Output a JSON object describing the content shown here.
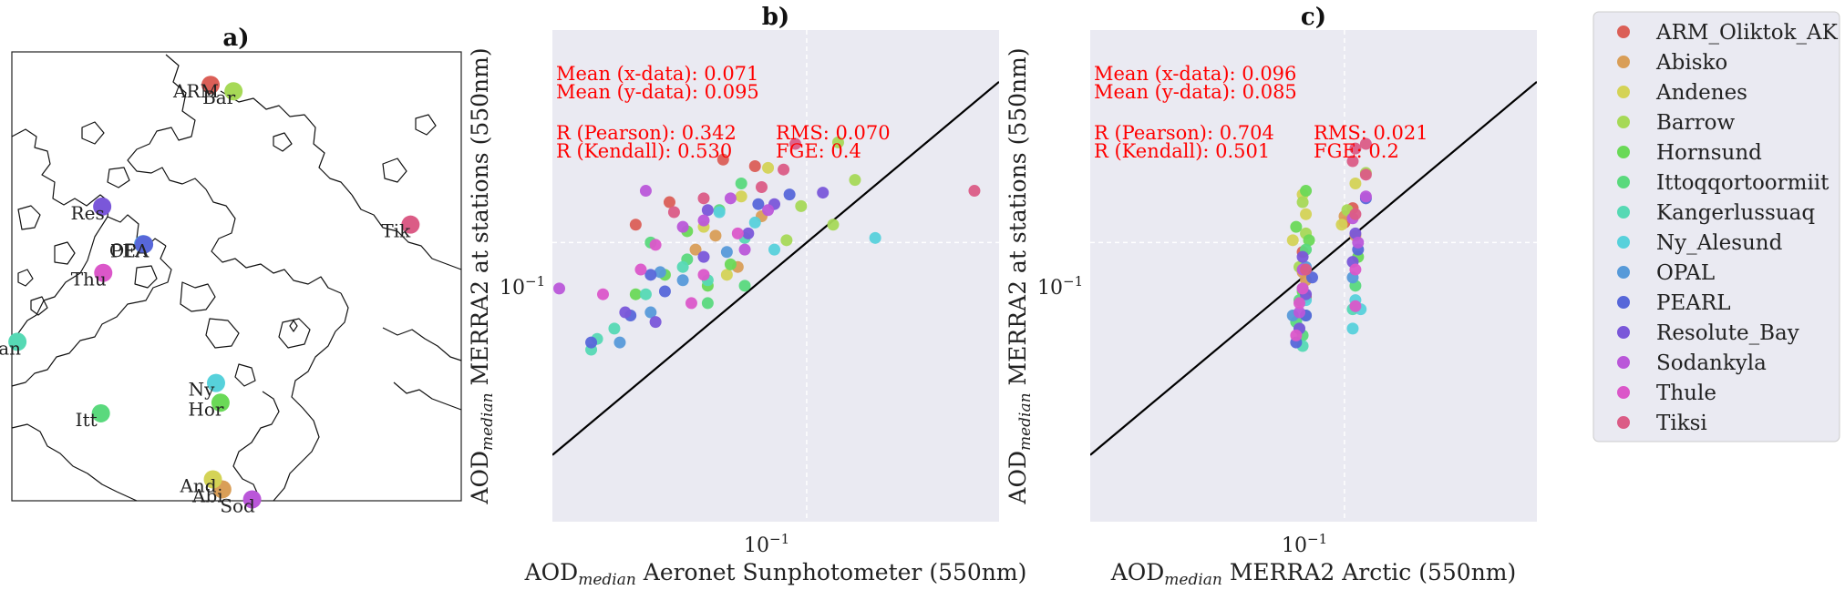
{
  "palette": [
    "#db5f57",
    "#d99e57",
    "#d4d356",
    "#a6d957",
    "#6ad957",
    "#5ad97d",
    "#56d9b4",
    "#57d1db",
    "#579ad9",
    "#5767d9",
    "#7a57d9",
    "#ba57d9",
    "#db57c9",
    "#db5c86"
  ],
  "stations": [
    {
      "name": "ARM_Oliktok_AK",
      "abbr": "ARM",
      "lon": -149.9,
      "lat": 70.5
    },
    {
      "name": "Abisko",
      "abbr": "Abi",
      "lon": 18.8,
      "lat": 68.4
    },
    {
      "name": "Andenes",
      "abbr": "And",
      "lon": 16.0,
      "lat": 69.3
    },
    {
      "name": "Barrow",
      "abbr": "Bar",
      "lon": -156.7,
      "lat": 71.3
    },
    {
      "name": "Hornsund",
      "abbr": "Hor",
      "lon": 15.5,
      "lat": 77.0
    },
    {
      "name": "Ittoqqortoormiit",
      "abbr": "Itt",
      "lon": -22.0,
      "lat": 70.5
    },
    {
      "name": "Kangerlussuaq",
      "abbr": "Kan",
      "lon": -50.7,
      "lat": 67.0
    },
    {
      "name": "Ny_Alesund",
      "abbr": "Ny",
      "lon": 11.9,
      "lat": 78.9
    },
    {
      "name": "OPAL",
      "abbr": "OPA",
      "lon": -86.4,
      "lat": 80.0
    },
    {
      "name": "PEARL",
      "abbr": "PEA",
      "lon": -86.4,
      "lat": 80.1
    },
    {
      "name": "Resolute_Bay",
      "abbr": "Res",
      "lon": -94.9,
      "lat": 74.7
    },
    {
      "name": "Sodankyla",
      "abbr": "Sod",
      "lon": 26.6,
      "lat": 67.4
    },
    {
      "name": "Thule",
      "abbr": "Thu",
      "lon": -68.8,
      "lat": 76.5
    },
    {
      "name": "Tiksi",
      "abbr": "Tik",
      "lon": 128.9,
      "lat": 71.6
    }
  ],
  "panel_a": {
    "title": "a)"
  },
  "panel_b": {
    "title": "b)",
    "xlabel_pre": "AOD",
    "xlabel_sub": "median",
    "xlabel_post": " Aeronet Sunphotometer (550nm)",
    "ylabel_pre": "AOD",
    "ylabel_sub": "median",
    "ylabel_post": " MERRA2 at stations (550nm)",
    "stats": {
      "mean_x": "Mean (x-data): 0.071",
      "mean_y": "Mean (y-data): 0.095",
      "pearson": "R (Pearson): 0.342",
      "kendall": "R (Kendall): 0.530",
      "rms": "RMS: 0.070",
      "fge": "FGE: 0.4"
    }
  },
  "panel_c": {
    "title": "c)",
    "xlabel_pre": "AOD",
    "xlabel_sub": "median",
    "xlabel_post": " MERRA2 Arctic (550nm)",
    "ylabel_pre": "AOD",
    "ylabel_sub": "median",
    "ylabel_post": " MERRA2 at stations (550nm)",
    "stats": {
      "mean_x": "Mean (x-data): 0.096",
      "mean_y": "Mean (y-data): 0.085",
      "pearson": "R (Pearson): 0.704",
      "kendall": "R (Kendall): 0.501",
      "rms": "RMS: 0.021",
      "fge": "FGE: 0.2"
    }
  },
  "chart_data": [
    {
      "type": "scatter",
      "panel": "b)",
      "x_scale": "log",
      "y_scale": "log",
      "xlim": [
        0.04,
        0.2
      ],
      "ylim": [
        0.03,
        0.25
      ],
      "tick_label": "10^-1",
      "tick_value": 0.1,
      "one_to_one_line": true,
      "grid": true,
      "series": [
        {
          "name": "ARM_Oliktok_AK",
          "x": [
            0.074,
            0.061,
            0.083,
            0.054
          ],
          "y": [
            0.143,
            0.119,
            0.139,
            0.108
          ]
        },
        {
          "name": "Abisko",
          "x": [
            0.072,
            0.085,
            0.067,
            0.078
          ],
          "y": [
            0.103,
            0.112,
            0.097,
            0.09
          ]
        },
        {
          "name": "Andenes",
          "x": [
            0.087,
            0.079,
            0.069,
            0.075
          ],
          "y": [
            0.138,
            0.122,
            0.107,
            0.087
          ]
        },
        {
          "name": "Barrow",
          "x": [
            0.112,
            0.119,
            0.098,
            0.11,
            0.093
          ],
          "y": [
            0.154,
            0.131,
            0.117,
            0.108,
            0.101
          ]
        },
        {
          "name": "Hornsund",
          "x": [
            0.06,
            0.065,
            0.07,
            0.054,
            0.076
          ],
          "y": [
            0.087,
            0.105,
            0.083,
            0.08,
            0.091
          ]
        },
        {
          "name": "Ittoqqortoormiit",
          "x": [
            0.057,
            0.065,
            0.073,
            0.079,
            0.08,
            0.07
          ],
          "y": [
            0.1,
            0.093,
            0.115,
            0.129,
            0.083,
            0.077
          ]
        },
        {
          "name": "Kangerlussuaq",
          "x": [
            0.05,
            0.056,
            0.064,
            0.08,
            0.07,
            0.047,
            0.046
          ],
          "y": [
            0.069,
            0.08,
            0.09,
            0.102,
            0.085,
            0.066,
            0.063
          ]
        },
        {
          "name": "Ny_Alesund",
          "x": [
            0.073,
            0.089,
            0.128,
            0.083
          ],
          "y": [
            0.114,
            0.097,
            0.102,
            0.109
          ]
        },
        {
          "name": "OPAL",
          "x": [
            0.051,
            0.057,
            0.064,
            0.075,
            0.059
          ],
          "y": [
            0.065,
            0.074,
            0.085,
            0.096,
            0.088
          ]
        },
        {
          "name": "PEARL",
          "x": [
            0.046,
            0.057,
            0.084,
            0.094,
            0.053,
            0.06
          ],
          "y": [
            0.065,
            0.087,
            0.118,
            0.123,
            0.073,
            0.081
          ]
        },
        {
          "name": "Resolute_Bay",
          "x": [
            0.07,
            0.069,
            0.058,
            0.052,
            0.081,
            0.089,
            0.106
          ],
          "y": [
            0.115,
            0.094,
            0.071,
            0.074,
            0.104,
            0.118,
            0.124
          ]
        },
        {
          "name": "Sodankyla",
          "x": [
            0.056,
            0.064,
            0.076,
            0.087,
            0.069,
            0.08,
            0.041
          ],
          "y": [
            0.125,
            0.107,
            0.121,
            0.115,
            0.11,
            0.097,
            0.082
          ]
        },
        {
          "name": "Thule",
          "x": [
            0.048,
            0.055,
            0.069,
            0.058,
            0.078,
            0.066
          ],
          "y": [
            0.08,
            0.089,
            0.087,
            0.099,
            0.104,
            0.077
          ]
        },
        {
          "name": "Tiksi",
          "x": [
            0.092,
            0.096,
            0.183,
            0.069,
            0.062,
            0.085
          ],
          "y": [
            0.137,
            0.153,
            0.125,
            0.121,
            0.114,
            0.127
          ]
        }
      ]
    },
    {
      "type": "scatter",
      "panel": "c)",
      "x_scale": "log",
      "y_scale": "log",
      "xlim": [
        0.04,
        0.2
      ],
      "ylim": [
        0.03,
        0.25
      ],
      "tick_label": "10^-1",
      "tick_value": 0.1,
      "one_to_one_line": true,
      "grid": true,
      "series": [
        {
          "name": "ARM_Oliktok_AK",
          "x": [
            0.086,
            0.1,
            0.103,
            0.087
          ],
          "y": [
            0.096,
            0.109,
            0.116,
            0.079
          ]
        },
        {
          "name": "Abisko",
          "x": [
            0.1,
            0.086,
            0.087,
            0.104
          ],
          "y": [
            0.112,
            0.088,
            0.085,
            0.103
          ]
        },
        {
          "name": "Andenes",
          "x": [
            0.086,
            0.087,
            0.083,
            0.099,
            0.104
          ],
          "y": [
            0.123,
            0.113,
            0.101,
            0.108,
            0.129
          ]
        },
        {
          "name": "Barrow",
          "x": [
            0.087,
            0.086,
            0.085,
            0.101,
            0.108
          ],
          "y": [
            0.104,
            0.119,
            0.09,
            0.115,
            0.135
          ]
        },
        {
          "name": "Hornsund",
          "x": [
            0.087,
            0.084,
            0.105,
            0.088,
            0.086
          ],
          "y": [
            0.125,
            0.107,
            0.094,
            0.101,
            0.081
          ]
        },
        {
          "name": "Ittoqqortoormiit",
          "x": [
            0.085,
            0.087,
            0.104,
            0.086,
            0.084
          ],
          "y": [
            0.078,
            0.097,
            0.083,
            0.067,
            0.071
          ]
        },
        {
          "name": "Kangerlussuaq",
          "x": [
            0.086,
            0.085,
            0.103,
            0.087
          ],
          "y": [
            0.064,
            0.069,
            0.075,
            0.073
          ]
        },
        {
          "name": "Ny_Alesund",
          "x": [
            0.087,
            0.104,
            0.103,
            0.106
          ],
          "y": [
            0.078,
            0.078,
            0.069,
            0.075
          ]
        },
        {
          "name": "OPAL",
          "x": [
            0.083,
            0.086,
            0.103,
            0.087
          ],
          "y": [
            0.073,
            0.082,
            0.086,
            0.09
          ]
        },
        {
          "name": "PEARL",
          "x": [
            0.084,
            0.087,
            0.105,
            0.108,
            0.089
          ],
          "y": [
            0.065,
            0.073,
            0.097,
            0.121,
            0.086
          ]
        },
        {
          "name": "Resolute_Bay",
          "x": [
            0.085,
            0.087,
            0.104,
            0.103,
            0.086
          ],
          "y": [
            0.069,
            0.08,
            0.104,
            0.092,
            0.094
          ]
        },
        {
          "name": "Sodankyla",
          "x": [
            0.085,
            0.086,
            0.103,
            0.108,
            0.105
          ],
          "y": [
            0.074,
            0.089,
            0.111,
            0.122,
            0.1
          ]
        },
        {
          "name": "Thule",
          "x": [
            0.084,
            0.086,
            0.104,
            0.085,
            0.104
          ],
          "y": [
            0.067,
            0.082,
            0.089,
            0.077,
            0.076
          ]
        },
        {
          "name": "Tiksi",
          "x": [
            0.103,
            0.104,
            0.108,
            0.108,
            0.104,
            0.087
          ],
          "y": [
            0.142,
            0.15,
            0.153,
            0.134,
            0.113,
            0.089
          ]
        }
      ]
    }
  ]
}
